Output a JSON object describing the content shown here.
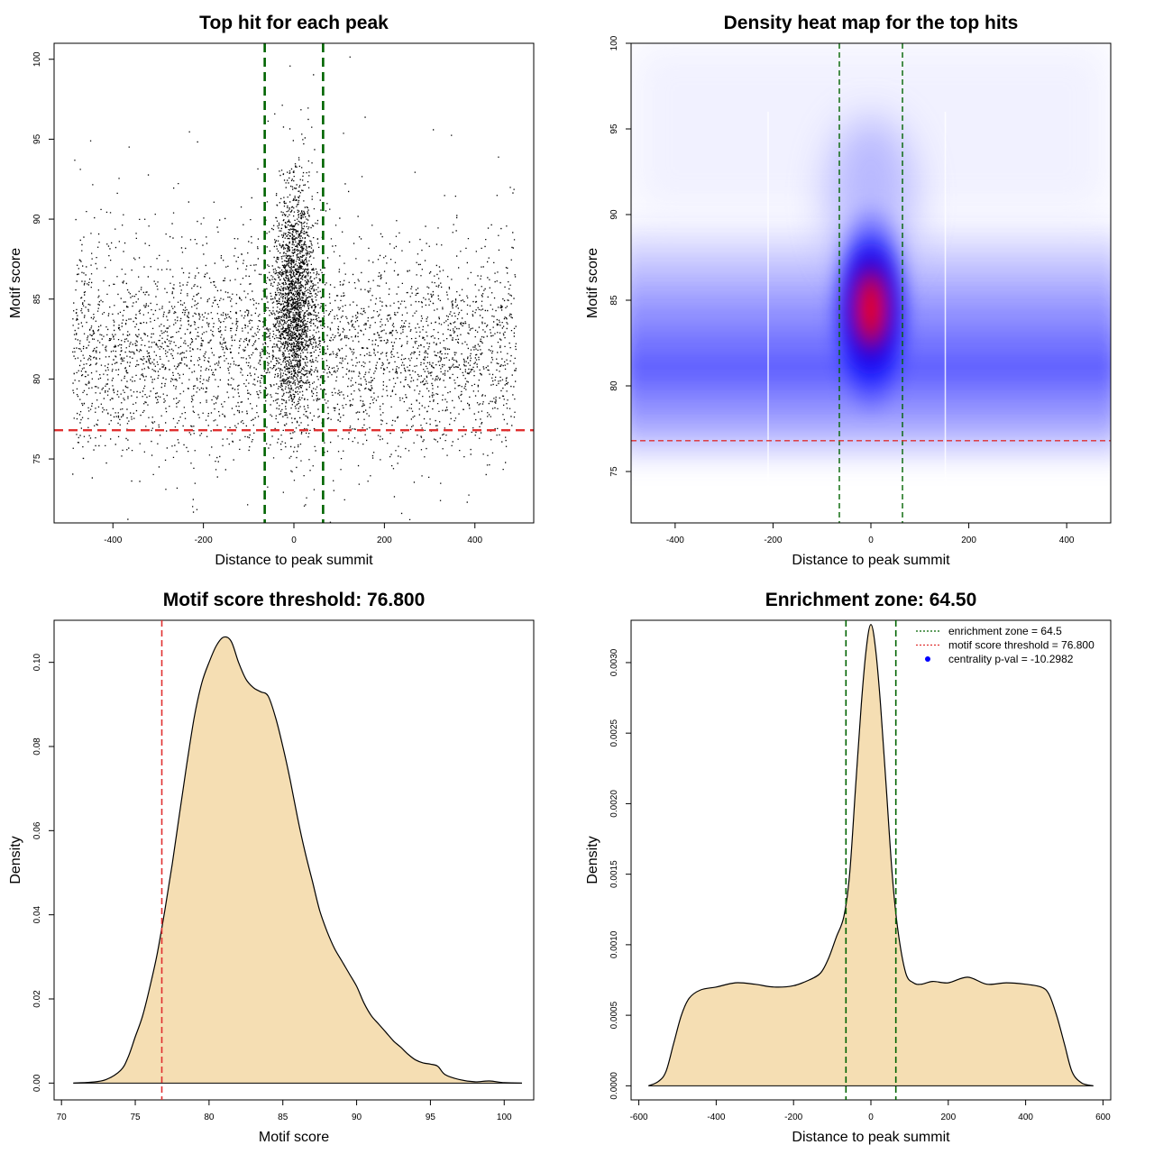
{
  "colors": {
    "threshold_red": "#e03030",
    "zone_green": "#006400",
    "fill_wheat": "#f5deb3",
    "heat_low": "#ffffff",
    "heat_mid": "#0000ff",
    "heat_high": "#ff0000"
  },
  "chart_data": [
    {
      "type": "scatter",
      "title": "Top hit for each peak",
      "xlabel": "Distance to peak summit",
      "ylabel": "Motif score",
      "xlim": [
        -530,
        530
      ],
      "ylim": [
        71,
        101
      ],
      "xticks": [
        -400,
        -200,
        0,
        200,
        400
      ],
      "xtick_labels": [
        "-400",
        "-200",
        "0",
        "200",
        "400"
      ],
      "yticks": [
        75,
        80,
        85,
        90,
        95,
        100
      ],
      "ytick_labels": [
        "75",
        "80",
        "85",
        "90",
        "95",
        "100"
      ],
      "vlines": [
        -64.5,
        64.5
      ],
      "hline": 76.8,
      "description_points": "dense cloud of ~20000 points, x uniform in [-490,490], y mostly 76-90 centered near 81, tight cluster centered at x=0 with y 78-97"
    },
    {
      "type": "heatmap",
      "title": "Density heat map for the top hits",
      "xlabel": "Distance to peak summit",
      "ylabel": "Motif score",
      "xlim": [
        -490,
        490
      ],
      "ylim": [
        72,
        100
      ],
      "xticks": [
        -400,
        -200,
        0,
        200,
        400
      ],
      "xtick_labels": [
        "-400",
        "-200",
        "0",
        "200",
        "400"
      ],
      "yticks": [
        75,
        80,
        85,
        90,
        95,
        100
      ],
      "ytick_labels": [
        "75",
        "80",
        "85",
        "90",
        "95",
        "100"
      ],
      "vlines": [
        -64.5,
        64.5
      ],
      "hline": 76.8,
      "peak": {
        "x": 0,
        "y": 84.5
      }
    },
    {
      "type": "area",
      "title": "Motif score threshold: 76.800",
      "xlabel": "Motif score",
      "ylabel": "Density",
      "xlim": [
        69.5,
        102
      ],
      "ylim": [
        -0.004,
        0.11
      ],
      "xticks": [
        70,
        75,
        80,
        85,
        90,
        95,
        100
      ],
      "xtick_labels": [
        "70",
        "75",
        "80",
        "85",
        "90",
        "95",
        "100"
      ],
      "yticks": [
        0,
        0.02,
        0.04,
        0.06,
        0.08,
        0.1
      ],
      "ytick_labels": [
        "0.00",
        "0.02",
        "0.04",
        "0.06",
        "0.08",
        "0.10"
      ],
      "vline": 76.8,
      "x": [
        70.8,
        72,
        73,
        74,
        74.5,
        75,
        75.5,
        76,
        76.5,
        77,
        77.5,
        78,
        78.5,
        79,
        79.5,
        80,
        80.5,
        81,
        81.5,
        82,
        82.5,
        83,
        83.5,
        84,
        84.5,
        85,
        85.5,
        86,
        86.5,
        87,
        87.5,
        88,
        88.5,
        89,
        89.5,
        90,
        90.5,
        91,
        91.5,
        92,
        92.5,
        93,
        93.5,
        94,
        94.5,
        95,
        95.5,
        96,
        97,
        98,
        99,
        100,
        101.2
      ],
      "y": [
        0,
        0.0002,
        0.0008,
        0.003,
        0.006,
        0.011,
        0.016,
        0.023,
        0.031,
        0.041,
        0.052,
        0.064,
        0.076,
        0.087,
        0.095,
        0.1,
        0.104,
        0.106,
        0.105,
        0.1,
        0.096,
        0.094,
        0.093,
        0.092,
        0.087,
        0.08,
        0.072,
        0.063,
        0.055,
        0.048,
        0.041,
        0.036,
        0.032,
        0.029,
        0.026,
        0.023,
        0.019,
        0.016,
        0.014,
        0.012,
        0.01,
        0.0085,
        0.0068,
        0.0055,
        0.0048,
        0.0045,
        0.004,
        0.002,
        0.0008,
        0.0003,
        0.0005,
        0.0001,
        0
      ]
    },
    {
      "type": "area",
      "title": "Enrichment zone: 64.50",
      "xlabel": "Distance to peak summit",
      "ylabel": "Density",
      "xlim": [
        -620,
        620
      ],
      "ylim": [
        -0.0001,
        0.0033
      ],
      "xticks": [
        -600,
        -400,
        -200,
        0,
        200,
        400,
        600
      ],
      "xtick_labels": [
        "-600",
        "-400",
        "-200",
        "0",
        "200",
        "400",
        "600"
      ],
      "yticks": [
        0,
        0.0005,
        0.001,
        0.0015,
        0.002,
        0.0025,
        0.003
      ],
      "ytick_labels": [
        "0.0000",
        "0.0005",
        "0.0010",
        "0.0015",
        "0.0020",
        "0.0025",
        "0.0030"
      ],
      "vlines": [
        -64.5,
        64.5
      ],
      "x": [
        -575,
        -550,
        -530,
        -510,
        -490,
        -470,
        -440,
        -400,
        -350,
        -300,
        -250,
        -200,
        -160,
        -130,
        -110,
        -90,
        -70,
        -55,
        -40,
        -25,
        -12,
        0,
        12,
        25,
        40,
        55,
        70,
        90,
        110,
        130,
        160,
        200,
        250,
        300,
        350,
        400,
        440,
        460,
        480,
        500,
        520,
        545,
        575
      ],
      "y": [
        0,
        3e-05,
        0.0001,
        0.0003,
        0.0005,
        0.00062,
        0.00068,
        0.0007,
        0.00073,
        0.00072,
        0.0007,
        0.00071,
        0.00075,
        0.0008,
        0.0009,
        0.00105,
        0.0012,
        0.0015,
        0.0021,
        0.0027,
        0.0031,
        0.00327,
        0.0031,
        0.0027,
        0.0021,
        0.0015,
        0.0011,
        0.0008,
        0.00073,
        0.00072,
        0.00074,
        0.00073,
        0.00077,
        0.00072,
        0.00073,
        0.00072,
        0.0007,
        0.00065,
        0.0005,
        0.0003,
        0.0001,
        2e-05,
        0
      ],
      "legend": [
        {
          "label": "enrichment zone = 64.5",
          "kind": "dotted-line",
          "color": "#006400"
        },
        {
          "label": "motif score threshold = 76.800",
          "kind": "dotted-line",
          "color": "#e03030"
        },
        {
          "label": "centrality p-val = -10.2982",
          "kind": "point",
          "color": "#0000ff"
        }
      ]
    }
  ]
}
